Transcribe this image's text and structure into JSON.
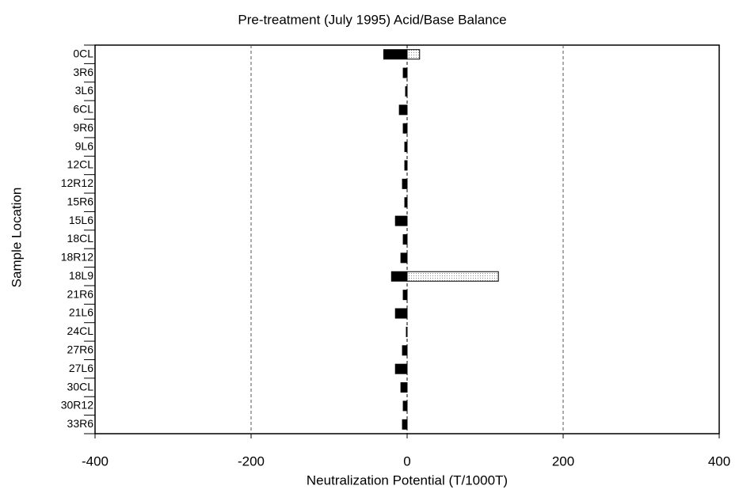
{
  "chart_data": {
    "type": "hbar",
    "title": "Pre-treatment (July 1995) Acid/Base Balance",
    "x_label": "Neutralization Potential (T/1000T)",
    "y_label": "Sample Location",
    "categories": [
      "0CL",
      "3R6",
      "3L6",
      "6CL",
      "9R6",
      "9L6",
      "12CL",
      "12R12",
      "15R6",
      "15L6",
      "18CL",
      "18R12",
      "18L9",
      "21R6",
      "21L6",
      "24CL",
      "27R6",
      "27L6",
      "30CL",
      "30R12",
      "33R6"
    ],
    "series": [
      {
        "color": "#000000",
        "values": [
          -30,
          -5,
          -2,
          -10,
          -5,
          -3,
          -3,
          -6,
          -3,
          -15,
          -5,
          -8,
          -20,
          -5,
          -15,
          -1,
          -6,
          -15,
          -8,
          -5,
          -6
        ]
      },
      {
        "color": "#d0d0d0",
        "values": [
          16,
          0,
          0,
          0,
          0,
          0,
          0,
          0,
          0,
          0,
          0,
          0,
          117,
          0,
          0,
          0,
          0,
          0,
          0,
          0,
          0
        ]
      }
    ],
    "xlim": [
      -400,
      400
    ],
    "xticks": [
      -400,
      -200,
      0,
      200,
      400
    ],
    "grid": true
  }
}
